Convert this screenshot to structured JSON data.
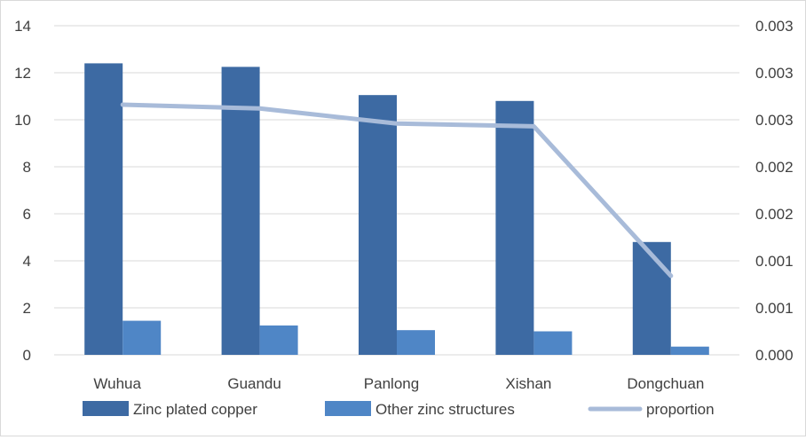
{
  "chart_data": {
    "type": "bar",
    "categories": [
      "Wuhua",
      "Guandu",
      "Panlong",
      "Xishan",
      "Dongchuan"
    ],
    "series": [
      {
        "name": "Zinc plated copper",
        "type": "bar",
        "axis": "left",
        "color": "#3d6aa3",
        "values": [
          12.4,
          12.25,
          11.05,
          10.8,
          4.8
        ]
      },
      {
        "name": "Other zinc structures",
        "type": "bar",
        "axis": "left",
        "color": "#4f86c6",
        "values": [
          1.45,
          1.25,
          1.05,
          1.0,
          0.35
        ]
      },
      {
        "name": "proportion",
        "type": "line",
        "axis": "right",
        "color": "#a8bbd9",
        "values": [
          0.00266,
          0.00262,
          0.00246,
          0.00243,
          0.00084
        ]
      }
    ],
    "y_left": {
      "min": 0,
      "max": 14,
      "ticks": [
        "0",
        "2",
        "4",
        "6",
        "8",
        "10",
        "12",
        "14"
      ]
    },
    "y_right": {
      "min": 0,
      "max": 0.0035,
      "ticks": [
        "0.000",
        "0.001",
        "0.001",
        "0.002",
        "0.002",
        "0.003",
        "0.003",
        "0.003"
      ]
    },
    "grid": true,
    "legend_position": "bottom"
  }
}
